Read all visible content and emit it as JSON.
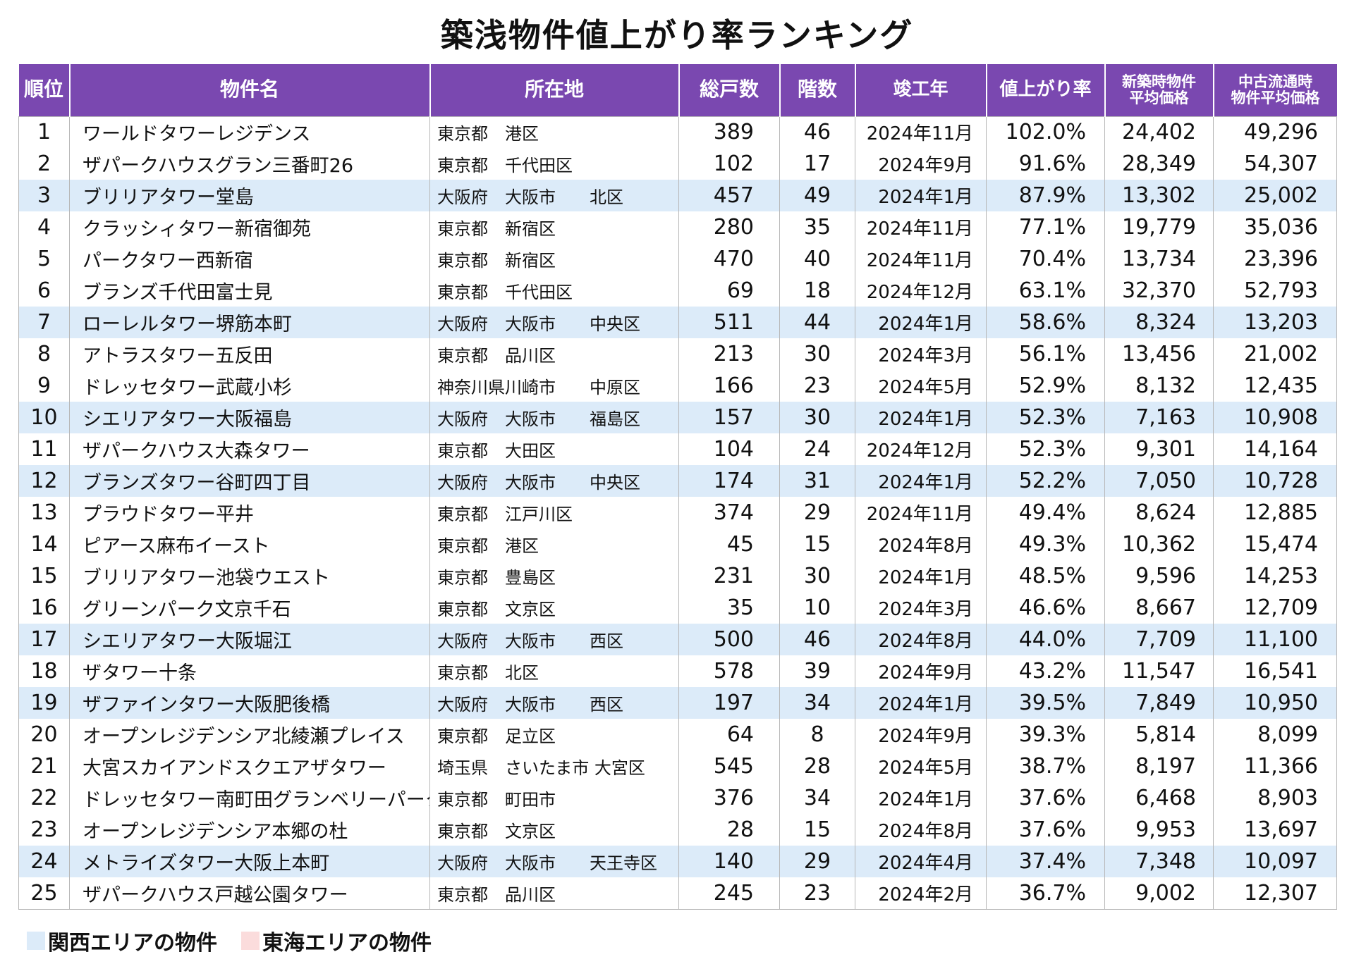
{
  "title": "築浅物件値上がり率ランキング",
  "headers": {
    "rank": "順位",
    "name": "物件名",
    "location": "所在地",
    "units": "総戸数",
    "floors": "階数",
    "completed": "竣工年",
    "rate": "値上がり率",
    "new_price_l1": "新築時物件",
    "new_price_l2": "平均価格",
    "used_price_l1": "中古流通時",
    "used_price_l2": "物件平均価格"
  },
  "rows": [
    {
      "rank": "1",
      "name": "ワールドタワーレジデンス",
      "location": "東京都　港区",
      "units": "389",
      "floors": "46",
      "completed": "2024年11月",
      "rate": "102.0%",
      "new_price": "24,402",
      "used_price": "49,296",
      "area": "other"
    },
    {
      "rank": "2",
      "name": "ザパークハウスグラン三番町26",
      "location": "東京都　千代田区",
      "units": "102",
      "floors": "17",
      "completed": "2024年9月",
      "rate": "91.6%",
      "new_price": "28,349",
      "used_price": "54,307",
      "area": "other"
    },
    {
      "rank": "3",
      "name": "ブリリアタワー堂島",
      "location": "大阪府　大阪市　　北区",
      "units": "457",
      "floors": "49",
      "completed": "2024年1月",
      "rate": "87.9%",
      "new_price": "13,302",
      "used_price": "25,002",
      "area": "kansai"
    },
    {
      "rank": "4",
      "name": "クラッシィタワー新宿御苑",
      "location": "東京都　新宿区",
      "units": "280",
      "floors": "35",
      "completed": "2024年11月",
      "rate": "77.1%",
      "new_price": "19,779",
      "used_price": "35,036",
      "area": "other"
    },
    {
      "rank": "5",
      "name": "パークタワー西新宿",
      "location": "東京都　新宿区",
      "units": "470",
      "floors": "40",
      "completed": "2024年11月",
      "rate": "70.4%",
      "new_price": "13,734",
      "used_price": "23,396",
      "area": "other"
    },
    {
      "rank": "6",
      "name": "ブランズ千代田富士見",
      "location": "東京都　千代田区",
      "units": "69",
      "floors": "18",
      "completed": "2024年12月",
      "rate": "63.1%",
      "new_price": "32,370",
      "used_price": "52,793",
      "area": "other"
    },
    {
      "rank": "7",
      "name": "ローレルタワー堺筋本町",
      "location": "大阪府　大阪市　　中央区",
      "units": "511",
      "floors": "44",
      "completed": "2024年1月",
      "rate": "58.6%",
      "new_price": "8,324",
      "used_price": "13,203",
      "area": "kansai"
    },
    {
      "rank": "8",
      "name": "アトラスタワー五反田",
      "location": "東京都　品川区",
      "units": "213",
      "floors": "30",
      "completed": "2024年3月",
      "rate": "56.1%",
      "new_price": "13,456",
      "used_price": "21,002",
      "area": "other"
    },
    {
      "rank": "9",
      "name": "ドレッセタワー武蔵小杉",
      "location": "神奈川県川崎市　　中原区",
      "units": "166",
      "floors": "23",
      "completed": "2024年5月",
      "rate": "52.9%",
      "new_price": "8,132",
      "used_price": "12,435",
      "area": "other"
    },
    {
      "rank": "10",
      "name": "シエリアタワー大阪福島",
      "location": "大阪府　大阪市　　福島区",
      "units": "157",
      "floors": "30",
      "completed": "2024年1月",
      "rate": "52.3%",
      "new_price": "7,163",
      "used_price": "10,908",
      "area": "kansai"
    },
    {
      "rank": "11",
      "name": "ザパークハウス大森タワー",
      "location": "東京都　大田区",
      "units": "104",
      "floors": "24",
      "completed": "2024年12月",
      "rate": "52.3%",
      "new_price": "9,301",
      "used_price": "14,164",
      "area": "other"
    },
    {
      "rank": "12",
      "name": "ブランズタワー谷町四丁目",
      "location": "大阪府　大阪市　　中央区",
      "units": "174",
      "floors": "31",
      "completed": "2024年1月",
      "rate": "52.2%",
      "new_price": "7,050",
      "used_price": "10,728",
      "area": "kansai"
    },
    {
      "rank": "13",
      "name": "プラウドタワー平井",
      "location": "東京都　江戸川区",
      "units": "374",
      "floors": "29",
      "completed": "2024年11月",
      "rate": "49.4%",
      "new_price": "8,624",
      "used_price": "12,885",
      "area": "other"
    },
    {
      "rank": "14",
      "name": "ピアース麻布イースト",
      "location": "東京都　港区",
      "units": "45",
      "floors": "15",
      "completed": "2024年8月",
      "rate": "49.3%",
      "new_price": "10,362",
      "used_price": "15,474",
      "area": "other"
    },
    {
      "rank": "15",
      "name": "ブリリアタワー池袋ウエスト",
      "location": "東京都　豊島区",
      "units": "231",
      "floors": "30",
      "completed": "2024年1月",
      "rate": "48.5%",
      "new_price": "9,596",
      "used_price": "14,253",
      "area": "other"
    },
    {
      "rank": "16",
      "name": "グリーンパーク文京千石",
      "location": "東京都　文京区",
      "units": "35",
      "floors": "10",
      "completed": "2024年3月",
      "rate": "46.6%",
      "new_price": "8,667",
      "used_price": "12,709",
      "area": "other"
    },
    {
      "rank": "17",
      "name": "シエリアタワー大阪堀江",
      "location": "大阪府　大阪市　　西区",
      "units": "500",
      "floors": "46",
      "completed": "2024年8月",
      "rate": "44.0%",
      "new_price": "7,709",
      "used_price": "11,100",
      "area": "kansai"
    },
    {
      "rank": "18",
      "name": "ザタワー十条",
      "location": "東京都　北区",
      "units": "578",
      "floors": "39",
      "completed": "2024年9月",
      "rate": "43.2%",
      "new_price": "11,547",
      "used_price": "16,541",
      "area": "other"
    },
    {
      "rank": "19",
      "name": "ザファインタワー大阪肥後橋",
      "location": "大阪府　大阪市　　西区",
      "units": "197",
      "floors": "34",
      "completed": "2024年1月",
      "rate": "39.5%",
      "new_price": "7,849",
      "used_price": "10,950",
      "area": "kansai"
    },
    {
      "rank": "20",
      "name": "オープンレジデンシア北綾瀬プレイス",
      "location": "東京都　足立区",
      "units": "64",
      "floors": "8",
      "completed": "2024年9月",
      "rate": "39.3%",
      "new_price": "5,814",
      "used_price": "8,099",
      "area": "other"
    },
    {
      "rank": "21",
      "name": "大宮スカイアンドスクエアザタワー",
      "location": "埼玉県　さいたま市 大宮区",
      "units": "545",
      "floors": "28",
      "completed": "2024年5月",
      "rate": "38.7%",
      "new_price": "8,197",
      "used_price": "11,366",
      "area": "other"
    },
    {
      "rank": "22",
      "name": "ドレッセタワー南町田グランベリーパーク",
      "location": "東京都　町田市",
      "units": "376",
      "floors": "34",
      "completed": "2024年1月",
      "rate": "37.6%",
      "new_price": "6,468",
      "used_price": "8,903",
      "area": "other"
    },
    {
      "rank": "23",
      "name": "オープンレジデンシア本郷の杜",
      "location": "東京都　文京区",
      "units": "28",
      "floors": "15",
      "completed": "2024年8月",
      "rate": "37.6%",
      "new_price": "9,953",
      "used_price": "13,697",
      "area": "other"
    },
    {
      "rank": "24",
      "name": "メトライズタワー大阪上本町",
      "location": "大阪府　大阪市　　天王寺区",
      "units": "140",
      "floors": "29",
      "completed": "2024年4月",
      "rate": "37.4%",
      "new_price": "7,348",
      "used_price": "10,097",
      "area": "kansai"
    },
    {
      "rank": "25",
      "name": "ザパークハウス戸越公園タワー",
      "location": "東京都　品川区",
      "units": "245",
      "floors": "23",
      "completed": "2024年2月",
      "rate": "36.7%",
      "new_price": "9,002",
      "used_price": "12,307",
      "area": "other"
    }
  ],
  "legend": [
    {
      "label": "関西エリアの物件",
      "color": "#dcebf9"
    },
    {
      "label": "東海エリアの物件",
      "color": "#fbdcdc"
    }
  ],
  "colors": {
    "header_bg": "#7a48b0",
    "kansai_row": "#dcebf9",
    "tokai_row": "#fbdcdc"
  }
}
